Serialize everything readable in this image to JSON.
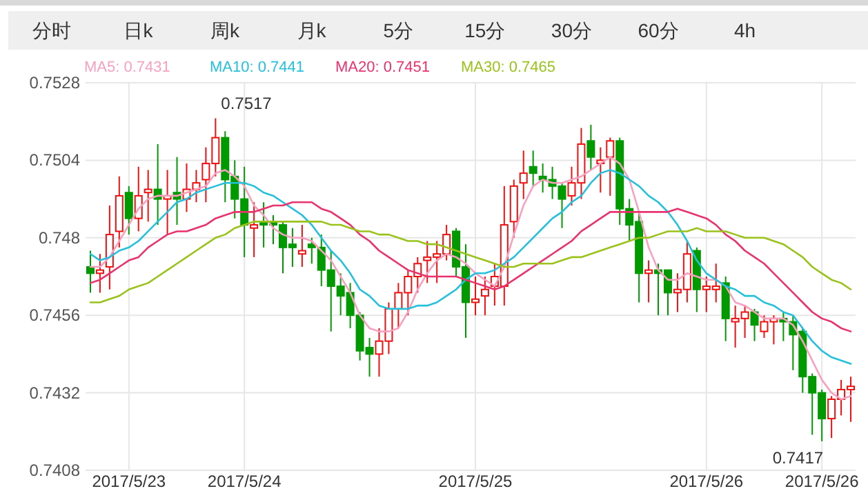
{
  "chart_data": {
    "type": "candlestick",
    "categories": [
      null,
      null,
      null,
      null,
      "2017/5/23",
      null,
      null,
      null,
      null,
      null,
      null,
      null,
      null,
      null,
      null,
      null,
      "2017/5/24",
      null,
      null,
      null,
      null,
      null,
      null,
      null,
      null,
      null,
      null,
      null,
      null,
      null,
      null,
      null,
      null,
      null,
      null,
      null,
      null,
      null,
      null,
      null,
      "2017/5/25",
      null,
      null,
      null,
      null,
      null,
      null,
      null,
      null,
      null,
      null,
      null,
      null,
      null,
      null,
      null,
      null,
      null,
      null,
      null,
      null,
      null,
      null,
      null,
      "2017/5/26",
      null,
      null,
      null,
      null,
      null,
      null,
      null,
      null,
      null,
      null,
      null,
      "2017/5/26",
      null,
      null,
      null
    ],
    "ohlc": [
      [
        0.7471,
        0.7476,
        0.7463,
        0.7469
      ],
      [
        0.7469,
        0.7475,
        0.7463,
        0.747
      ],
      [
        0.7471,
        0.749,
        0.7464,
        0.7481
      ],
      [
        0.7482,
        0.7499,
        0.7477,
        0.7493
      ],
      [
        0.7494,
        0.7496,
        0.7481,
        0.7486
      ],
      [
        0.7486,
        0.7502,
        0.7482,
        0.7493
      ],
      [
        0.7494,
        0.7501,
        0.7485,
        0.7495
      ],
      [
        0.7495,
        0.7509,
        0.7484,
        0.7492
      ],
      [
        0.7492,
        0.7501,
        0.7481,
        0.7493
      ],
      [
        0.7494,
        0.7505,
        0.7484,
        0.7492
      ],
      [
        0.7492,
        0.7503,
        0.7488,
        0.7495
      ],
      [
        0.7495,
        0.7501,
        0.7491,
        0.7497
      ],
      [
        0.7498,
        0.7508,
        0.7491,
        0.7503
      ],
      [
        0.7503,
        0.7517,
        0.7499,
        0.7511
      ],
      [
        0.7511,
        0.7513,
        0.7491,
        0.7498
      ],
      [
        0.7499,
        0.7504,
        0.7486,
        0.7492
      ],
      [
        0.7492,
        0.7502,
        0.7474,
        0.7484
      ],
      [
        0.7483,
        0.7491,
        0.7474,
        0.7484
      ],
      [
        0.7485,
        0.7491,
        0.7477,
        0.7484
      ],
      [
        0.7485,
        0.7487,
        0.7478,
        0.7484
      ],
      [
        0.7484,
        0.7485,
        0.7469,
        0.7477
      ],
      [
        0.7478,
        0.7483,
        0.7471,
        0.7477
      ],
      [
        0.7475,
        0.7484,
        0.7471,
        0.7476
      ],
      [
        0.7478,
        0.748,
        0.7472,
        0.7477
      ],
      [
        0.7477,
        0.7481,
        0.7465,
        0.747
      ],
      [
        0.747,
        0.7476,
        0.7451,
        0.7465
      ],
      [
        0.7465,
        0.7469,
        0.7456,
        0.7462
      ],
      [
        0.7463,
        0.7466,
        0.7452,
        0.7456
      ],
      [
        0.7456,
        0.7457,
        0.7442,
        0.7445
      ],
      [
        0.7446,
        0.7449,
        0.7437,
        0.7444
      ],
      [
        0.7444,
        0.7452,
        0.7437,
        0.7448
      ],
      [
        0.7448,
        0.746,
        0.7444,
        0.7458
      ],
      [
        0.7458,
        0.7466,
        0.7452,
        0.7463
      ],
      [
        0.7463,
        0.747,
        0.7456,
        0.7468
      ],
      [
        0.7468,
        0.7474,
        0.7463,
        0.7472
      ],
      [
        0.7473,
        0.7479,
        0.7466,
        0.7474
      ],
      [
        0.7474,
        0.7479,
        0.7466,
        0.7475
      ],
      [
        0.7475,
        0.7484,
        0.7473,
        0.7481
      ],
      [
        0.7482,
        0.7483,
        0.7468,
        0.7471
      ],
      [
        0.7471,
        0.7478,
        0.7449,
        0.746
      ],
      [
        0.746,
        0.7468,
        0.7456,
        0.7461
      ],
      [
        0.7462,
        0.7468,
        0.7456,
        0.7464
      ],
      [
        0.7465,
        0.7472,
        0.7459,
        0.7468
      ],
      [
        0.7465,
        0.7496,
        0.7459,
        0.7484
      ],
      [
        0.7485,
        0.7498,
        0.748,
        0.7496
      ],
      [
        0.7497,
        0.7507,
        0.7492,
        0.75
      ],
      [
        0.7502,
        0.7507,
        0.7496,
        0.75
      ],
      [
        0.7499,
        0.7503,
        0.7494,
        0.7498
      ],
      [
        0.7498,
        0.7502,
        0.7492,
        0.7496
      ],
      [
        0.7496,
        0.7497,
        0.7483,
        0.7492
      ],
      [
        0.7493,
        0.7502,
        0.749,
        0.7497
      ],
      [
        0.7497,
        0.7514,
        0.7492,
        0.7509
      ],
      [
        0.751,
        0.7515,
        0.7501,
        0.7505
      ],
      [
        0.7503,
        0.7508,
        0.7494,
        0.7504
      ],
      [
        0.7505,
        0.7511,
        0.7493,
        0.751
      ],
      [
        0.751,
        0.7511,
        0.7484,
        0.7489
      ],
      [
        0.7489,
        0.7492,
        0.7479,
        0.7484
      ],
      [
        0.7485,
        0.7488,
        0.746,
        0.7469
      ],
      [
        0.7469,
        0.7473,
        0.746,
        0.747
      ],
      [
        0.747,
        0.7472,
        0.7456,
        0.7469
      ],
      [
        0.747,
        0.747,
        0.7456,
        0.7463
      ],
      [
        0.7463,
        0.7469,
        0.7457,
        0.7464
      ],
      [
        0.7464,
        0.7479,
        0.746,
        0.7475
      ],
      [
        0.7476,
        0.7477,
        0.7457,
        0.7464
      ],
      [
        0.7464,
        0.7468,
        0.7457,
        0.7465
      ],
      [
        0.7464,
        0.7472,
        0.746,
        0.7465
      ],
      [
        0.7466,
        0.7468,
        0.7448,
        0.7455
      ],
      [
        0.7454,
        0.7459,
        0.7446,
        0.7455
      ],
      [
        0.7455,
        0.7459,
        0.7449,
        0.7457
      ],
      [
        0.7457,
        0.7458,
        0.7448,
        0.7453
      ],
      [
        0.7451,
        0.7456,
        0.7449,
        0.7454
      ],
      [
        0.7454,
        0.7456,
        0.7447,
        0.7455
      ],
      [
        0.7455,
        0.7457,
        0.7448,
        0.7454
      ],
      [
        0.7454,
        0.7456,
        0.7439,
        0.745
      ],
      [
        0.7451,
        0.7452,
        0.7432,
        0.7437
      ],
      [
        0.7437,
        0.7438,
        0.7419,
        0.7432
      ],
      [
        0.7432,
        0.7433,
        0.7417,
        0.7424
      ],
      [
        0.7424,
        0.7431,
        0.7418,
        0.743
      ],
      [
        0.743,
        0.7436,
        0.7425,
        0.7433
      ],
      [
        0.7433,
        0.7437,
        0.7423,
        0.7434
      ]
    ],
    "series": [
      {
        "name": "MA5: 0.7431",
        "type": "line",
        "color": "#f7a1c0",
        "values": [
          0.7471,
          0.7471,
          0.7474,
          0.7479,
          0.7484,
          0.7489,
          0.7492,
          0.7493,
          0.7493,
          0.7493,
          0.7494,
          0.7495,
          0.7496,
          0.75,
          0.7501,
          0.7499,
          0.7496,
          0.749,
          0.7487,
          0.7483,
          0.7481,
          0.748,
          0.748,
          0.7479,
          0.7476,
          0.7473,
          0.7468,
          0.7463,
          0.7456,
          0.7452,
          0.7451,
          0.7451,
          0.7452,
          0.7457,
          0.7464,
          0.7469,
          0.7473,
          0.7475,
          0.7474,
          0.7472,
          0.7469,
          0.7467,
          0.7465,
          0.7471,
          0.7481,
          0.749,
          0.7496,
          0.7498,
          0.7497,
          0.7497,
          0.7498,
          0.7499,
          0.7501,
          0.7503,
          0.7505,
          0.7503,
          0.7498,
          0.7488,
          0.7477,
          0.747,
          0.7467,
          0.7467,
          0.7469,
          0.7468,
          0.7467,
          0.7467,
          0.7465,
          0.746,
          0.7459,
          0.7457,
          0.7455,
          0.7455,
          0.7455,
          0.7453,
          0.7448,
          0.7442,
          0.7436,
          0.7432,
          0.743,
          0.7431
        ]
      },
      {
        "name": "MA10: 0.7441",
        "type": "line",
        "color": "#25c1dc",
        "values": [
          0.7475,
          0.7473,
          0.7474,
          0.7476,
          0.7477,
          0.7479,
          0.7482,
          0.7485,
          0.7488,
          0.7491,
          0.7492,
          0.7494,
          0.7495,
          0.7496,
          0.7497,
          0.7497,
          0.7497,
          0.7496,
          0.7494,
          0.7493,
          0.7491,
          0.7489,
          0.7487,
          0.7484,
          0.748,
          0.7476,
          0.7473,
          0.7469,
          0.7464,
          0.7462,
          0.7459,
          0.7458,
          0.7458,
          0.7458,
          0.7459,
          0.7459,
          0.746,
          0.7462,
          0.7464,
          0.7467,
          0.7469,
          0.7469,
          0.747,
          0.7472,
          0.7474,
          0.7477,
          0.748,
          0.7483,
          0.7486,
          0.7488,
          0.7491,
          0.7493,
          0.7497,
          0.75,
          0.7501,
          0.75,
          0.7498,
          0.7496,
          0.7493,
          0.7491,
          0.7488,
          0.7484,
          0.7479,
          0.7473,
          0.7469,
          0.7467,
          0.7465,
          0.7464,
          0.7462,
          0.7462,
          0.746,
          0.7459,
          0.7457,
          0.7456,
          0.7452,
          0.7448,
          0.7445,
          0.7443,
          0.7442,
          0.7441
        ]
      },
      {
        "name": "MA20: 0.7451",
        "type": "line",
        "color": "#e8336f",
        "values": [
          0.7466,
          0.7467,
          0.7469,
          0.7471,
          0.7473,
          0.7474,
          0.7477,
          0.7479,
          0.7481,
          0.7482,
          0.7482,
          0.7483,
          0.7484,
          0.7486,
          0.7487,
          0.7488,
          0.7488,
          0.7488,
          0.7489,
          0.749,
          0.749,
          0.7491,
          0.7491,
          0.7491,
          0.7489,
          0.7488,
          0.7486,
          0.7484,
          0.7481,
          0.7479,
          0.7476,
          0.7474,
          0.7472,
          0.747,
          0.7469,
          0.7468,
          0.7468,
          0.7468,
          0.7468,
          0.7467,
          0.7466,
          0.7465,
          0.7464,
          0.7465,
          0.7467,
          0.7469,
          0.7471,
          0.7473,
          0.7475,
          0.7477,
          0.7479,
          0.7482,
          0.7484,
          0.7486,
          0.7488,
          0.7488,
          0.7488,
          0.7488,
          0.7488,
          0.7488,
          0.7488,
          0.7489,
          0.7488,
          0.7487,
          0.7486,
          0.7484,
          0.7481,
          0.7479,
          0.7476,
          0.7474,
          0.7472,
          0.7469,
          0.7466,
          0.7463,
          0.746,
          0.7457,
          0.7455,
          0.7454,
          0.7452,
          0.7451
        ]
      },
      {
        "name": "MA30: 0.7465",
        "type": "line",
        "color": "#9ac21b",
        "values": [
          0.746,
          0.746,
          0.7461,
          0.7462,
          0.7464,
          0.7465,
          0.7466,
          0.7468,
          0.747,
          0.7472,
          0.7474,
          0.7476,
          0.7478,
          0.748,
          0.7481,
          0.7483,
          0.7484,
          0.7485,
          0.7485,
          0.7485,
          0.7485,
          0.7485,
          0.7485,
          0.7485,
          0.7485,
          0.7484,
          0.7484,
          0.7483,
          0.7482,
          0.7482,
          0.7481,
          0.7481,
          0.748,
          0.7479,
          0.7479,
          0.7478,
          0.7478,
          0.7477,
          0.7476,
          0.7475,
          0.7474,
          0.7473,
          0.7472,
          0.7471,
          0.7471,
          0.7472,
          0.7472,
          0.7472,
          0.7472,
          0.7473,
          0.7474,
          0.7474,
          0.7475,
          0.7476,
          0.7477,
          0.7478,
          0.7479,
          0.748,
          0.748,
          0.7481,
          0.7482,
          0.7482,
          0.7482,
          0.7483,
          0.7482,
          0.7482,
          0.7482,
          0.7481,
          0.748,
          0.748,
          0.748,
          0.7479,
          0.7478,
          0.7476,
          0.7474,
          0.7471,
          0.7469,
          0.7467,
          0.7466,
          0.7464
        ]
      }
    ],
    "ylim": [
      0.7408,
      0.7528
    ],
    "yticks": [
      0.7408,
      0.7432,
      0.7456,
      0.748,
      0.7504,
      0.7528
    ],
    "grid": true,
    "legend": "top left",
    "annotations": [
      "分时",
      "日k",
      "周k",
      "月k",
      "5分",
      "15分",
      "30分",
      "60分",
      "4h",
      "0.7517",
      "0.7417"
    ]
  }
}
